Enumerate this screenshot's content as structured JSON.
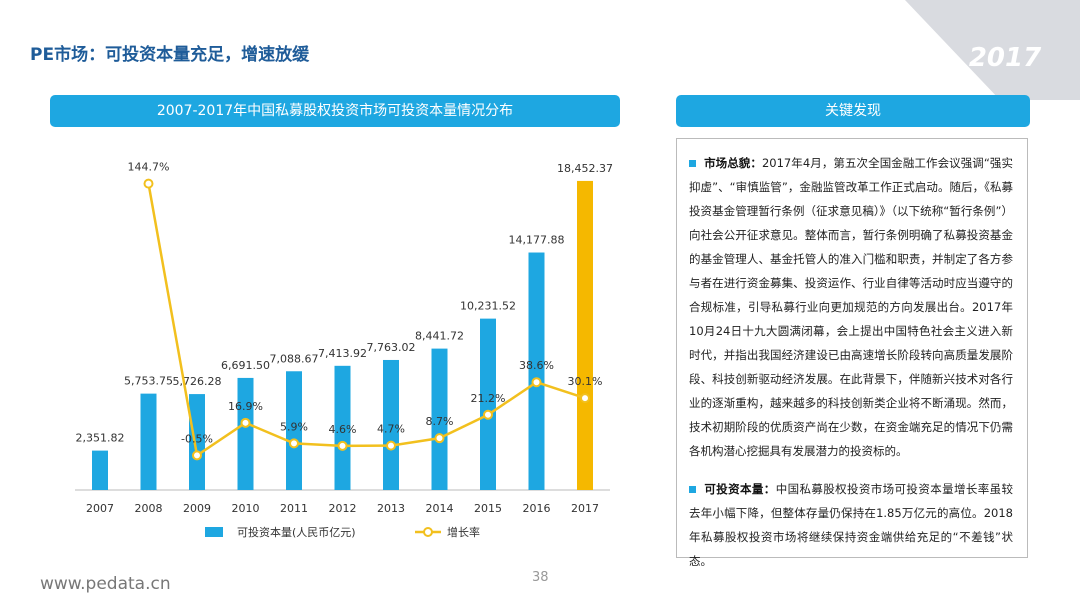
{
  "header": {
    "title": "PE市场：可投资本量充足，增速放缓",
    "year": "2017"
  },
  "chart_data": {
    "type": "bar-line",
    "title": "2007-2017年中国私募股权投资市场可投资本量情况分布",
    "categories": [
      "2007",
      "2008",
      "2009",
      "2010",
      "2011",
      "2012",
      "2013",
      "2014",
      "2015",
      "2016",
      "2017"
    ],
    "series": [
      {
        "name": "可投资本量(人民币亿元)",
        "type": "bar",
        "color": "#1ea7e1",
        "colors": [
          "#1ea7e1",
          "#1ea7e1",
          "#1ea7e1",
          "#1ea7e1",
          "#1ea7e1",
          "#1ea7e1",
          "#1ea7e1",
          "#1ea7e1",
          "#1ea7e1",
          "#1ea7e1",
          "#f5b800"
        ],
        "values": [
          2351.82,
          5753.75,
          5726.28,
          6691.5,
          7088.67,
          7413.92,
          7763.02,
          8441.72,
          10231.52,
          14177.88,
          18452.37
        ],
        "value_labels": [
          "2,351.82",
          "5,753.75",
          "5,726.28",
          "6,691.50",
          "7,088.67",
          "7,413.92",
          "7,763.02",
          "8,441.72",
          "10,231.52",
          "14,177.88",
          "18,452.37"
        ]
      },
      {
        "name": "增长率",
        "type": "line",
        "axis": "y2",
        "color": "#f2c01e",
        "values": [
          null,
          144.7,
          -0.5,
          16.9,
          5.9,
          4.6,
          4.7,
          8.7,
          21.2,
          38.6,
          30.1
        ],
        "value_labels": [
          null,
          "144.7%",
          "-0.5%",
          "16.9%",
          "5.9%",
          "4.6%",
          "4.7%",
          "8.7%",
          "21.2%",
          "38.6%",
          "30.1%"
        ]
      }
    ],
    "ylim": [
      0,
      20000
    ],
    "y2lim": [
      -19,
      160
    ],
    "legend": "bottom"
  },
  "panel": {
    "title": "关键发现",
    "items": [
      {
        "lead": "市场总貌：",
        "text": "2017年4月，第五次全国金融工作会议强调“强实抑虚”、“审慎监管”，金融监管改革工作正式启动。随后，《私募投资基金管理暂行条例（征求意见稿）》（以下统称“暂行条例”）向社会公开征求意见。整体而言，暂行条例明确了私募投资基金的基金管理人、基金托管人的准入门槛和职责，并制定了各方参与者在进行资金募集、投资运作、行业自律等活动时应当遵守的合规标准，引导私募行业向更加规范的方向发展出台。2017年10月24日十九大圆满闭幕，会上提出中国特色社会主义进入新时代，并指出我国经济建设已由高速增长阶段转向高质量发展阶段、科技创新驱动经济发展。在此背景下，伴随新兴技术对各行业的逐渐重构，越来越多的科技创新类企业将不断涌现。然而，技术初期阶段的优质资产尚在少数，在资金端充足的情况下仍需各机构潜心挖掘具有发展潜力的投资标的。"
      },
      {
        "lead": "可投资本量：",
        "text": "中国私募股权投资市场可投资本量增长率虽较去年小幅下降，但整体存量仍保持在1.85万亿元的高位。2018年私募股权投资市场将继续保持资金端供给充足的“不差钱”状态。"
      }
    ]
  },
  "footer": {
    "url": "www.pedata.cn",
    "page": "38"
  }
}
